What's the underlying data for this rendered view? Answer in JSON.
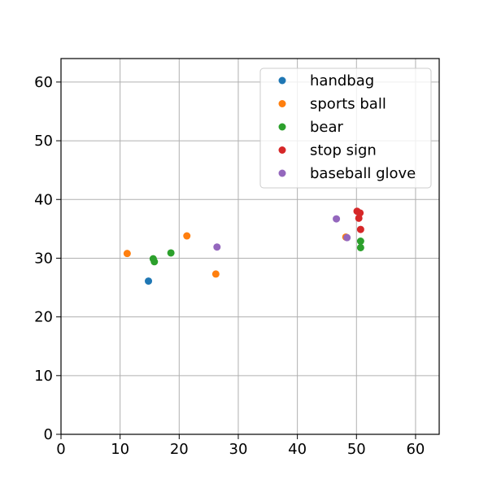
{
  "chart_data": {
    "type": "scatter",
    "title": "",
    "xlabel": "",
    "ylabel": "",
    "xlim": [
      0,
      64
    ],
    "ylim": [
      0,
      64
    ],
    "xticks": [
      0,
      10,
      20,
      30,
      40,
      50,
      60
    ],
    "yticks": [
      0,
      10,
      20,
      30,
      40,
      50,
      60
    ],
    "grid": true,
    "legend_position": "top-right",
    "series": [
      {
        "name": "handbag",
        "color": "#1f77b4",
        "points": [
          [
            14.8,
            26.1
          ]
        ]
      },
      {
        "name": "sports ball",
        "color": "#ff7f0e",
        "points": [
          [
            11.2,
            30.8
          ],
          [
            21.3,
            33.8
          ],
          [
            26.2,
            27.3
          ],
          [
            48.2,
            33.6
          ]
        ]
      },
      {
        "name": "bear",
        "color": "#2ca02c",
        "points": [
          [
            15.6,
            29.9
          ],
          [
            15.8,
            29.4
          ],
          [
            18.6,
            30.9
          ],
          [
            50.7,
            32.9
          ],
          [
            50.7,
            31.8
          ]
        ]
      },
      {
        "name": "stop sign",
        "color": "#d62728",
        "points": [
          [
            50.1,
            38.0
          ],
          [
            50.6,
            37.7
          ],
          [
            50.4,
            36.8
          ],
          [
            50.7,
            34.9
          ]
        ]
      },
      {
        "name": "baseball glove",
        "color": "#9467bd",
        "points": [
          [
            26.4,
            31.9
          ],
          [
            46.6,
            36.7
          ],
          [
            48.4,
            33.5
          ]
        ]
      }
    ]
  }
}
